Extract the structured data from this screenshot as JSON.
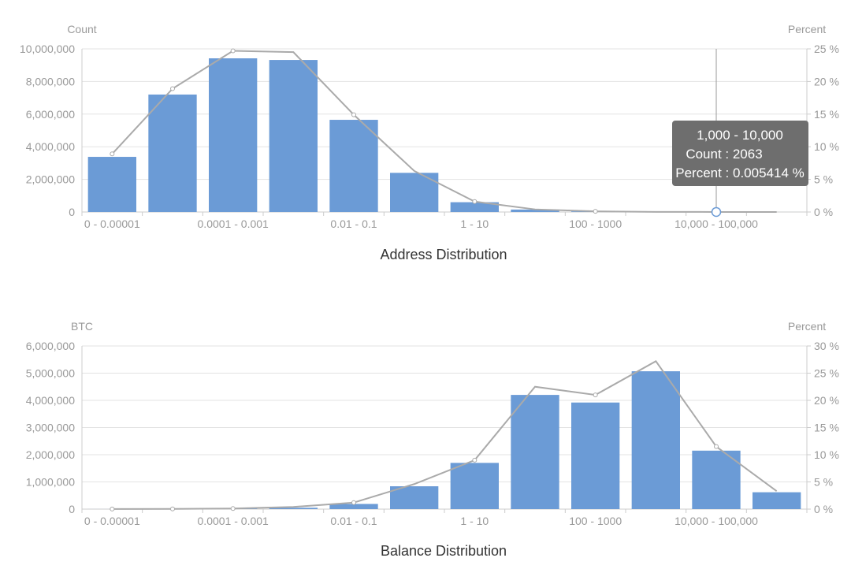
{
  "colors": {
    "bar": "#6b9bd6",
    "line": "#aaaaaa",
    "grid": "#e3e3e3",
    "axis_text": "#999999",
    "title": "#333333",
    "tooltip_bg": "#6e6e6e",
    "tooltip_text": "#ffffff"
  },
  "tooltip": {
    "chart_index": 0,
    "category_index": 10,
    "title": "1,000 - 10,000",
    "count_line": "Count : 2063",
    "percent_line": "Percent : 0.005414 %"
  },
  "chart_data": [
    {
      "type": "bar",
      "title": "Address Distribution",
      "ylabel": "Count",
      "y2label": "Percent",
      "ylim": [
        0,
        10000000
      ],
      "y2lim": [
        0,
        25
      ],
      "yticks": [
        "0",
        "2,000,000",
        "4,000,000",
        "6,000,000",
        "8,000,000",
        "10,000,000"
      ],
      "y2ticks": [
        "0 %",
        "5 %",
        "10 %",
        "15 %",
        "20 %",
        "25 %"
      ],
      "xticks": [
        "0 - 0.00001",
        "0.0001 - 0.001",
        "0.01 - 0.1",
        "1 - 10",
        "100 - 1000",
        "10,000 - 100,000"
      ],
      "grid": true,
      "series": [
        {
          "type": "bar",
          "axis": "left",
          "values": [
            3380000,
            7200000,
            9420000,
            9320000,
            5650000,
            2400000,
            600000,
            150000,
            40000,
            8000,
            2063,
            200
          ]
        },
        {
          "type": "line",
          "axis": "right",
          "values": [
            8.9,
            18.9,
            24.7,
            24.5,
            14.9,
            6.3,
            1.6,
            0.4,
            0.1,
            0.02,
            0.005414,
            0.0005
          ]
        }
      ]
    },
    {
      "type": "bar",
      "title": "Balance Distribution",
      "ylabel": "BTC",
      "y2label": "Percent",
      "ylim": [
        0,
        6000000
      ],
      "y2lim": [
        0,
        30
      ],
      "yticks": [
        "0",
        "1,000,000",
        "2,000,000",
        "3,000,000",
        "4,000,000",
        "5,000,000",
        "6,000,000"
      ],
      "y2ticks": [
        "0 %",
        "5 %",
        "10 %",
        "15 %",
        "20 %",
        "25 %",
        "30 %"
      ],
      "xticks": [
        "0 - 0.00001",
        "0.0001 - 0.001",
        "0.01 - 0.1",
        "1 - 10",
        "100 - 1000",
        "10,000 - 100,000"
      ],
      "grid": true,
      "series": [
        {
          "type": "bar",
          "axis": "left",
          "values": [
            1000,
            5000,
            15000,
            50000,
            190000,
            840000,
            1700000,
            4200000,
            3920000,
            5070000,
            2150000,
            620000
          ]
        },
        {
          "type": "line",
          "axis": "right",
          "values": [
            0.01,
            0.04,
            0.1,
            0.4,
            1.2,
            4.6,
            9.0,
            22.5,
            21.0,
            27.2,
            11.5,
            3.3
          ]
        }
      ]
    }
  ]
}
